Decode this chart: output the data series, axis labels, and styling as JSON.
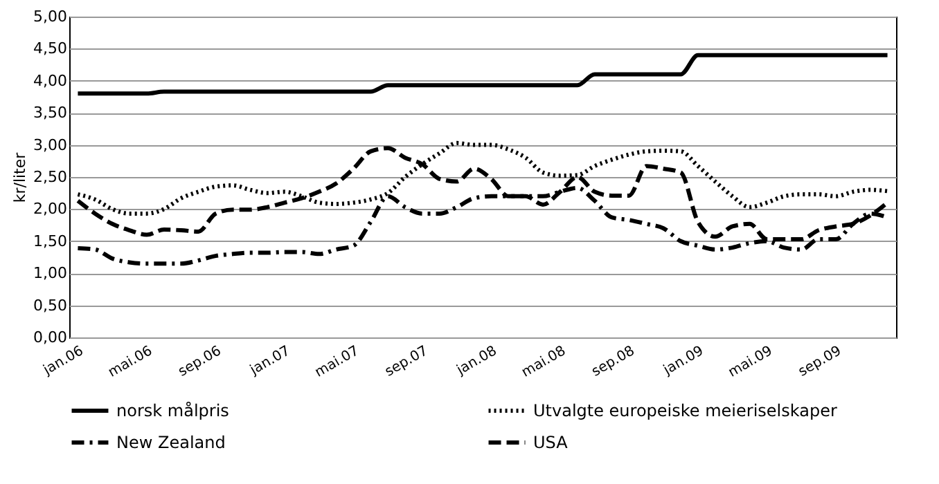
{
  "chart_data": {
    "type": "line",
    "ylabel": "kr/liter",
    "categories": [
      "jan.06",
      null,
      null,
      null,
      "mai.06",
      null,
      null,
      null,
      "sep.06",
      null,
      null,
      null,
      "jan.07",
      null,
      null,
      null,
      "mai.07",
      null,
      null,
      null,
      "sep.07",
      null,
      null,
      null,
      "jan.08",
      null,
      null,
      null,
      "mai.08",
      null,
      null,
      null,
      "sep.08",
      null,
      null,
      null,
      "jan.09",
      null,
      null,
      null,
      "mai.09",
      null,
      null,
      null,
      "sep.09",
      null,
      null,
      null
    ],
    "series": [
      {
        "name": "norsk målpris",
        "color": "#000000",
        "line_style": "solid",
        "values": [
          3.8,
          3.8,
          3.8,
          3.8,
          3.8,
          3.83,
          3.83,
          3.83,
          3.83,
          3.83,
          3.83,
          3.83,
          3.83,
          3.83,
          3.83,
          3.83,
          3.83,
          3.83,
          3.93,
          3.93,
          3.93,
          3.93,
          3.93,
          3.93,
          3.93,
          3.93,
          3.93,
          3.93,
          3.93,
          3.93,
          4.1,
          4.1,
          4.1,
          4.1,
          4.1,
          4.1,
          4.4,
          4.4,
          4.4,
          4.4,
          4.4,
          4.4,
          4.4,
          4.4,
          4.4,
          4.4,
          4.4,
          4.4
        ]
      },
      {
        "name": "Utvalgte europeiske meieriselskaper",
        "color": "#000000",
        "line_style": "dotted",
        "values": [
          2.23,
          2.15,
          2.0,
          1.93,
          1.93,
          2.0,
          2.17,
          2.27,
          2.35,
          2.37,
          2.3,
          2.25,
          2.27,
          2.2,
          2.1,
          2.08,
          2.1,
          2.15,
          2.25,
          2.5,
          2.7,
          2.87,
          3.03,
          3.0,
          3.0,
          2.93,
          2.8,
          2.57,
          2.52,
          2.53,
          2.67,
          2.77,
          2.85,
          2.9,
          2.91,
          2.9,
          2.67,
          2.43,
          2.2,
          2.03,
          2.1,
          2.2,
          2.23,
          2.23,
          2.2,
          2.27,
          2.3,
          2.28
        ]
      },
      {
        "name": "New Zealand",
        "color": "#000000",
        "line_style": "dashdot",
        "values": [
          1.39,
          1.37,
          1.23,
          1.17,
          1.15,
          1.15,
          1.15,
          1.2,
          1.27,
          1.3,
          1.32,
          1.32,
          1.33,
          1.33,
          1.3,
          1.37,
          1.43,
          1.8,
          2.2,
          2.03,
          1.93,
          1.93,
          2.03,
          2.17,
          2.2,
          2.2,
          2.2,
          2.2,
          2.27,
          2.33,
          2.13,
          1.87,
          1.83,
          1.77,
          1.7,
          1.5,
          1.43,
          1.37,
          1.4,
          1.47,
          1.5,
          1.4,
          1.37,
          1.53,
          1.53,
          1.77,
          1.93,
          1.87
        ]
      },
      {
        "name": "USA",
        "color": "#000000",
        "line_style": "dashed",
        "values": [
          2.13,
          1.93,
          1.77,
          1.67,
          1.6,
          1.68,
          1.67,
          1.65,
          1.93,
          1.99,
          1.99,
          2.03,
          2.1,
          2.17,
          2.27,
          2.4,
          2.63,
          2.9,
          2.95,
          2.8,
          2.7,
          2.47,
          2.43,
          2.63,
          2.47,
          2.2,
          2.2,
          2.07,
          2.27,
          2.5,
          2.27,
          2.21,
          2.21,
          2.67,
          2.63,
          2.57,
          1.8,
          1.57,
          1.73,
          1.77,
          1.53,
          1.53,
          1.53,
          1.67,
          1.73,
          1.77,
          1.9,
          2.1
        ]
      }
    ],
    "ylim": [
      0,
      5
    ],
    "yticks": [
      {
        "value": 0,
        "label": "0,00"
      },
      {
        "value": 0.5,
        "label": "0,50"
      },
      {
        "value": 1,
        "label": "1,00"
      },
      {
        "value": 1.5,
        "label": "1,50"
      },
      {
        "value": 2,
        "label": "2,00"
      },
      {
        "value": 2.5,
        "label": "2,50"
      },
      {
        "value": 3,
        "label": "3,00"
      },
      {
        "value": 3.5,
        "label": "3,50"
      },
      {
        "value": 4,
        "label": "4,00"
      },
      {
        "value": 4.5,
        "label": "4,50"
      },
      {
        "value": 5,
        "label": "5,00"
      }
    ],
    "grid": "y",
    "legend": "bottom",
    "marker": "none"
  }
}
